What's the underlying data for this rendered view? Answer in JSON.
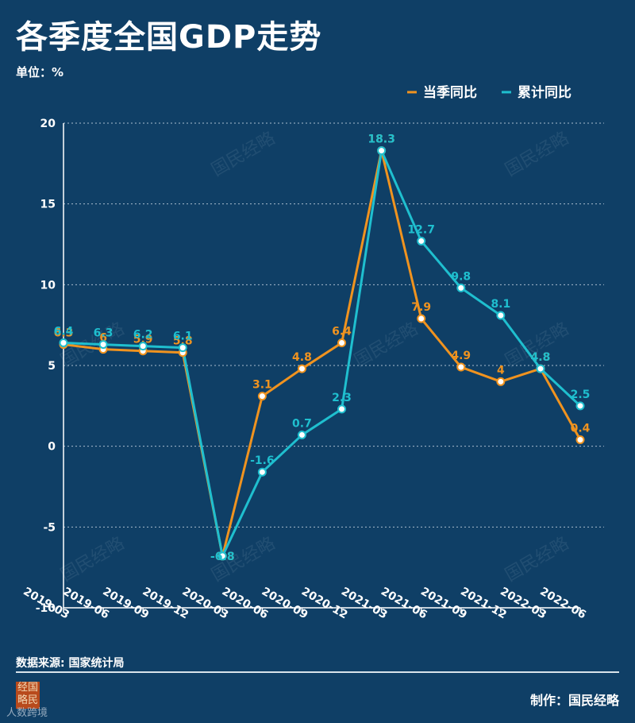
{
  "page": {
    "title": "各季度全国GDP走势",
    "unit": "单位：%",
    "source": "数据来源: 国家统计局",
    "credit": "制作：国民经略",
    "logo_text": "经国略民",
    "bottom_mark": "人数跨境"
  },
  "watermark": "国民经略",
  "colors": {
    "background": "#0f3f66",
    "quarterly": "#f0931f",
    "cumulative": "#1fbfcf",
    "grid": "#a9bccd"
  },
  "chart_data": {
    "type": "line",
    "title": "各季度全国GDP走势",
    "xlabel": "",
    "ylabel": "单位：%",
    "ylim": [
      -10,
      20
    ],
    "yticks": [
      -10,
      -5,
      0,
      5,
      10,
      15,
      20
    ],
    "grid": true,
    "legend_position": "top-right",
    "categories": [
      "2019-03",
      "2019-06",
      "2019-09",
      "2019-12",
      "2020-03",
      "2020-06",
      "2020-09",
      "2020-12",
      "2021-03",
      "2021-06",
      "2021-09",
      "2021-12",
      "2022-03",
      "2022-06"
    ],
    "series": [
      {
        "name": "当季同比",
        "color": "#f0931f",
        "values": [
          6.3,
          6,
          5.9,
          5.8,
          -6.8,
          3.1,
          4.8,
          6.4,
          18.3,
          7.9,
          4.9,
          4,
          4.8,
          0.4
        ],
        "labels": [
          "6.3",
          "6",
          "5.9",
          "5.8",
          "-6.8",
          "3.1",
          "4.8",
          "6.4",
          "18.3",
          "7.9",
          "4.9",
          "4",
          "4.8",
          "0.4"
        ]
      },
      {
        "name": "累计同比",
        "color": "#1fbfcf",
        "values": [
          6.4,
          6.3,
          6.2,
          6.1,
          -6.8,
          -1.6,
          0.7,
          2.3,
          18.3,
          12.7,
          9.8,
          8.1,
          4.8,
          2.5
        ],
        "labels": [
          "6.4",
          "6.3",
          "6.2",
          "6.1",
          "-6.8",
          "-1.6",
          "0.7",
          "2.3",
          "18.3",
          "12.7",
          "9.8",
          "8.1",
          "4.8",
          "2.5"
        ]
      }
    ]
  }
}
